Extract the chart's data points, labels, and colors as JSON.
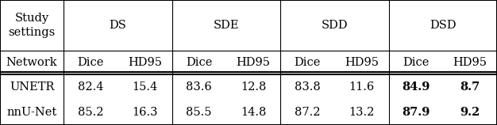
{
  "col_groups": [
    "DS",
    "SDE",
    "SDD",
    "DSD"
  ],
  "sub_headers": [
    "Dice",
    "HD95",
    "Dice",
    "HD95",
    "Dice",
    "HD95",
    "Dice",
    "HD95"
  ],
  "row_header": "Network",
  "row_labels": [
    "UNETR",
    "nnU-Net"
  ],
  "data": [
    [
      "82.4",
      "15.4",
      "83.6",
      "12.8",
      "83.8",
      "11.6",
      "84.9",
      "8.7"
    ],
    [
      "85.2",
      "16.3",
      "85.5",
      "14.8",
      "87.2",
      "13.2",
      "87.9",
      "9.2"
    ]
  ],
  "bold_cols": [
    6,
    7
  ],
  "study_settings_label": "Study\nsettings",
  "background_color": "#ffffff",
  "line_color": "#000000",
  "font_size": 10.5
}
